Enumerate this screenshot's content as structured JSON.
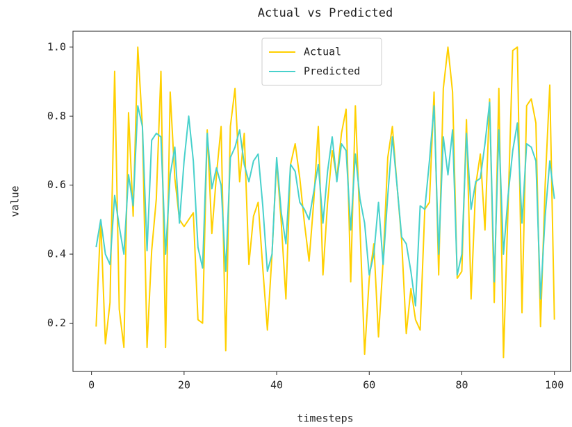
{
  "chart_data": {
    "type": "line",
    "title": "Actual vs Predicted",
    "xlabel": "timesteps",
    "ylabel": "value",
    "x": [
      1,
      2,
      3,
      4,
      5,
      6,
      7,
      8,
      9,
      10,
      11,
      12,
      13,
      14,
      15,
      16,
      17,
      18,
      19,
      20,
      21,
      22,
      23,
      24,
      25,
      26,
      27,
      28,
      29,
      30,
      31,
      32,
      33,
      34,
      35,
      36,
      37,
      38,
      39,
      40,
      41,
      42,
      43,
      44,
      45,
      46,
      47,
      48,
      49,
      50,
      51,
      52,
      53,
      54,
      55,
      56,
      57,
      58,
      59,
      60,
      61,
      62,
      63,
      64,
      65,
      66,
      67,
      68,
      69,
      70,
      71,
      72,
      73,
      74,
      75,
      76,
      77,
      78,
      79,
      80,
      81,
      82,
      83,
      84,
      85,
      86,
      87,
      88,
      89,
      90,
      91,
      92,
      93,
      94,
      95,
      96,
      97,
      98,
      99,
      100
    ],
    "series": [
      {
        "name": "Actual",
        "color": "#FFD000",
        "values": [
          0.19,
          0.5,
          0.14,
          0.26,
          0.93,
          0.24,
          0.13,
          0.81,
          0.51,
          1.0,
          0.77,
          0.13,
          0.41,
          0.56,
          0.93,
          0.13,
          0.87,
          0.62,
          0.5,
          0.48,
          0.5,
          0.52,
          0.21,
          0.2,
          0.76,
          0.46,
          0.63,
          0.77,
          0.12,
          0.77,
          0.88,
          0.61,
          0.75,
          0.37,
          0.51,
          0.55,
          0.36,
          0.18,
          0.4,
          0.67,
          0.49,
          0.27,
          0.66,
          0.72,
          0.62,
          0.49,
          0.38,
          0.55,
          0.77,
          0.34,
          0.55,
          0.7,
          0.62,
          0.75,
          0.82,
          0.32,
          0.83,
          0.48,
          0.11,
          0.33,
          0.43,
          0.16,
          0.38,
          0.68,
          0.77,
          0.6,
          0.44,
          0.17,
          0.3,
          0.21,
          0.18,
          0.53,
          0.55,
          0.87,
          0.34,
          0.88,
          1.0,
          0.87,
          0.33,
          0.35,
          0.79,
          0.27,
          0.6,
          0.69,
          0.47,
          0.85,
          0.26,
          0.88,
          0.1,
          0.54,
          0.99,
          1.0,
          0.23,
          0.83,
          0.85,
          0.78,
          0.19,
          0.6,
          0.89,
          0.21
        ]
      },
      {
        "name": "Predicted",
        "color": "#48D1CC",
        "values": [
          0.42,
          0.5,
          0.4,
          0.37,
          0.57,
          0.48,
          0.4,
          0.63,
          0.54,
          0.83,
          0.77,
          0.41,
          0.73,
          0.75,
          0.74,
          0.4,
          0.63,
          0.71,
          0.49,
          0.67,
          0.8,
          0.67,
          0.42,
          0.36,
          0.75,
          0.59,
          0.65,
          0.6,
          0.35,
          0.68,
          0.71,
          0.76,
          0.66,
          0.61,
          0.67,
          0.69,
          0.54,
          0.35,
          0.4,
          0.68,
          0.52,
          0.43,
          0.66,
          0.64,
          0.55,
          0.53,
          0.5,
          0.58,
          0.66,
          0.49,
          0.64,
          0.74,
          0.61,
          0.72,
          0.7,
          0.47,
          0.69,
          0.56,
          0.49,
          0.34,
          0.4,
          0.55,
          0.37,
          0.57,
          0.74,
          0.6,
          0.45,
          0.43,
          0.35,
          0.25,
          0.54,
          0.53,
          0.67,
          0.83,
          0.4,
          0.74,
          0.63,
          0.76,
          0.34,
          0.4,
          0.75,
          0.53,
          0.61,
          0.62,
          0.72,
          0.84,
          0.32,
          0.76,
          0.4,
          0.57,
          0.7,
          0.78,
          0.49,
          0.72,
          0.71,
          0.67,
          0.27,
          0.51,
          0.67,
          0.56
        ]
      }
    ],
    "xlim": [
      -4,
      103.5
    ],
    "xticks": [
      0,
      20,
      40,
      60,
      80,
      100
    ],
    "ylim": [
      0.06,
      1.046
    ],
    "yticks": [
      0.2,
      0.4,
      0.6,
      0.8,
      {
        "value": 1.0,
        "label": "1.0"
      }
    ],
    "grid": false,
    "legend": "upper center"
  }
}
